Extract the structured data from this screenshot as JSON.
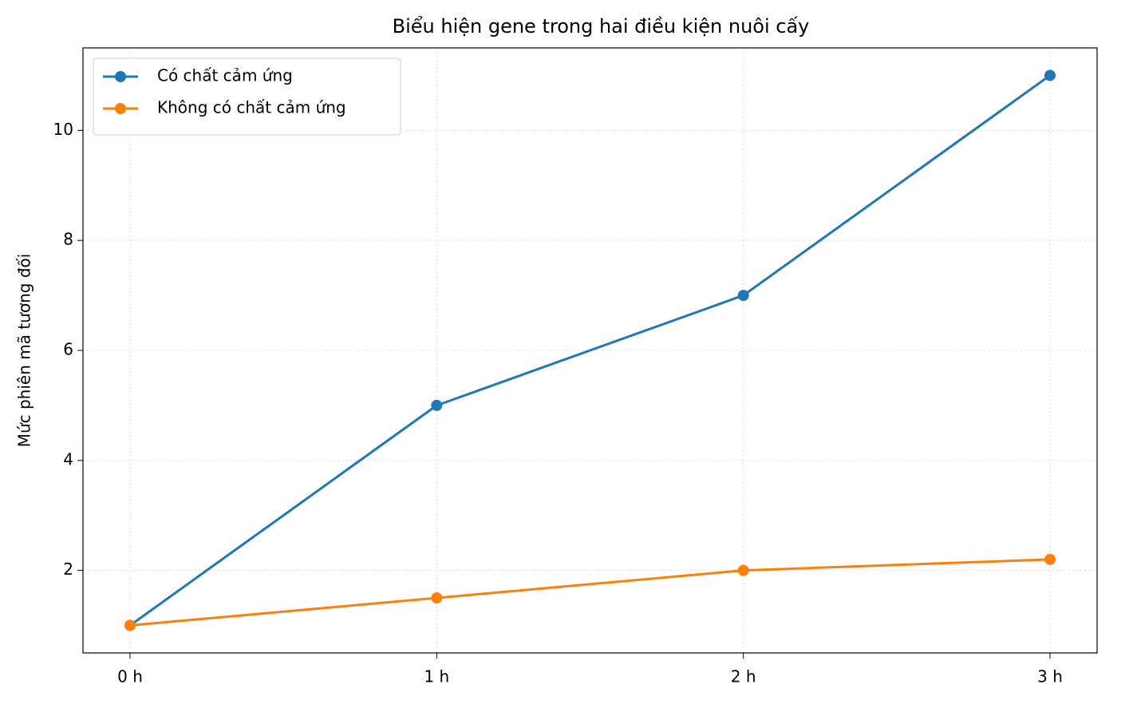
{
  "chart_data": {
    "type": "line",
    "title": "Biểu hiện gene trong hai điều kiện nuôi cấy",
    "y_label": "Mức phiên mã tương đối",
    "categories": [
      "0 h",
      "1 h",
      "2 h",
      "3 h"
    ],
    "series": [
      {
        "name": "Có chất cảm ứng",
        "color": "#1f77b4",
        "values": [
          1,
          5,
          7,
          11
        ]
      },
      {
        "name": "Không có chất cảm ứng",
        "color": "#ff7f0e",
        "values": [
          1,
          1.5,
          2,
          2.2
        ]
      }
    ],
    "ylim": [
      0.5,
      11.5
    ],
    "yticks": [
      2,
      4,
      6,
      8,
      10
    ],
    "grid": true,
    "legend": "upper left"
  }
}
